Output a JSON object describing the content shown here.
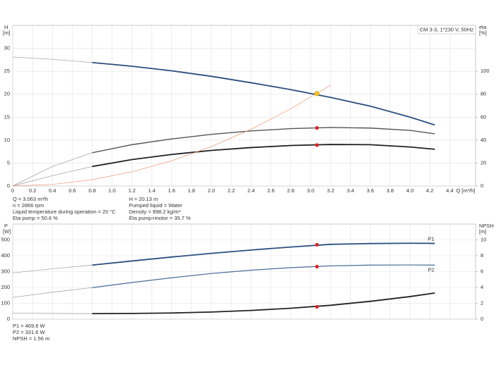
{
  "chart_data": [
    {
      "type": "line",
      "caption": "CM 3-3, 1*230 V, 50Hz",
      "ylabel": "H",
      "yunit": "[m]",
      "y2label": "eta",
      "y2unit": "[%]",
      "xlabel": "Q [m³/h]",
      "xlim": [
        0,
        4.66
      ],
      "ylim": [
        0,
        35
      ],
      "y2lim": [
        0,
        140
      ],
      "grid": true,
      "xticks": [
        0,
        0.2,
        0.4,
        0.6,
        0.8,
        {
          "value": 1,
          "label": "1.0"
        },
        1.2,
        1.4,
        1.6,
        1.8,
        {
          "value": 2,
          "label": "2.0"
        },
        2.2,
        2.4,
        2.6,
        2.8,
        {
          "value": 3,
          "label": "3.0"
        },
        3.2,
        3.4,
        3.6,
        3.8,
        {
          "value": 4,
          "label": "4.0"
        },
        4.2,
        4.4
      ],
      "yticks": [
        0,
        5,
        10,
        15,
        20,
        25,
        30
      ],
      "y2ticks": [
        0,
        20,
        40,
        60,
        80,
        100
      ],
      "series": [
        {
          "color": "#999999",
          "width": 0.7,
          "axis": "y",
          "x": [
            0,
            0.4,
            0.8
          ],
          "values": [
            28.1,
            27.6,
            26.9
          ]
        },
        {
          "color": "#2b4f7e",
          "width": 1.8,
          "axis": "y",
          "x": [
            0.8,
            1.2,
            1.6,
            2.0,
            2.4,
            2.8,
            3.2,
            3.6,
            4.0,
            4.25
          ],
          "values": [
            26.9,
            26.1,
            25.1,
            23.9,
            22.5,
            21.0,
            19.3,
            17.4,
            15.0,
            13.3
          ]
        },
        {
          "color": "#999999",
          "width": 0.7,
          "axis": "y2",
          "x": [
            0,
            0.4,
            0.8
          ],
          "values": [
            0,
            17,
            29
          ]
        },
        {
          "color": "#555555",
          "width": 1.4,
          "axis": "y2",
          "x": [
            0.8,
            1.2,
            1.6,
            2.0,
            2.4,
            2.8,
            3.2,
            3.6,
            4.0,
            4.25
          ],
          "values": [
            29,
            36,
            41,
            45,
            48,
            50,
            51,
            50.5,
            48.5,
            45.5
          ]
        },
        {
          "color": "#999999",
          "width": 0.7,
          "axis": "y2",
          "x": [
            0,
            0.4,
            0.8
          ],
          "values": [
            0,
            9,
            17
          ]
        },
        {
          "color": "#222222",
          "width": 1.8,
          "axis": "y2",
          "x": [
            0.8,
            1.2,
            1.6,
            2.0,
            2.4,
            2.8,
            3.2,
            3.6,
            4.0,
            4.25
          ],
          "values": [
            17,
            23,
            27.5,
            31,
            33.5,
            35.3,
            36.2,
            36,
            34,
            32
          ]
        },
        {
          "color": "#f0a080",
          "width": 0.8,
          "axis": "y",
          "x": [
            0,
            0.4,
            0.8,
            1.2,
            1.6,
            2.0,
            2.4,
            2.8,
            3.2
          ],
          "values": [
            0,
            0.34,
            1.37,
            3.09,
            5.49,
            8.58,
            12.36,
            16.82,
            21.97
          ]
        }
      ],
      "points": [
        {
          "x": 3.063,
          "y": 20.13,
          "axis": "y",
          "color": "#f5c518"
        },
        {
          "x": 3.063,
          "y": 50.6,
          "axis": "y2",
          "color": "#e02020"
        },
        {
          "x": 3.063,
          "y": 35.7,
          "axis": "y2",
          "color": "#e02020"
        }
      ],
      "notes": [
        [
          "Q = 3.063 m³/h",
          "n = 2866 rpm",
          "Liquid temperature during operation = 20 °C",
          "Eta pump = 50.6 %"
        ],
        [
          "H = 20.13 m",
          "Pumped liquid = Water",
          "Density = 998.2 kg/m³",
          "Eta pump+motor = 35.7 %"
        ]
      ]
    },
    {
      "type": "line",
      "ylabel": "P",
      "yunit": "[W]",
      "y2label": "NPSH",
      "y2unit": "[m]",
      "xlim": [
        0,
        4.66
      ],
      "ylim": [
        0,
        600
      ],
      "y2lim": [
        0,
        12
      ],
      "grid": true,
      "yticks": [
        0,
        100,
        200,
        300,
        400,
        500
      ],
      "y2ticks": [
        0,
        2,
        4,
        6,
        8,
        10
      ],
      "series": [
        {
          "color": "#999999",
          "width": 0.7,
          "axis": "y",
          "x": [
            0,
            0.4,
            0.8
          ],
          "values": [
            292,
            318,
            341
          ]
        },
        {
          "name": "P1",
          "color": "#2b4f7e",
          "width": 1.8,
          "axis": "y",
          "x": [
            0.8,
            1.2,
            1.6,
            2.0,
            2.4,
            2.8,
            3.2,
            3.6,
            4.0,
            4.25
          ],
          "values": [
            341,
            367,
            392,
            415,
            436,
            455,
            472,
            477,
            479,
            478
          ]
        },
        {
          "color": "#999999",
          "width": 0.7,
          "axis": "y",
          "x": [
            0,
            0.4,
            0.8
          ],
          "values": [
            137,
            170,
            199
          ]
        },
        {
          "name": "P2",
          "color": "#4a6b98",
          "width": 1.2,
          "axis": "y",
          "x": [
            0.8,
            1.2,
            1.6,
            2.0,
            2.4,
            2.8,
            3.2,
            3.6,
            4.0,
            4.25
          ],
          "values": [
            199,
            231,
            261,
            288,
            309,
            325,
            336,
            341,
            342,
            341
          ]
        },
        {
          "color": "#999999",
          "width": 0.7,
          "axis": "y2",
          "x": [
            0,
            0.4,
            0.8
          ],
          "values": [
            0.75,
            0.72,
            0.7
          ]
        },
        {
          "color": "#222222",
          "width": 1.8,
          "axis": "y2",
          "x": [
            0.8,
            1.2,
            1.6,
            2.0,
            2.4,
            2.8,
            3.2,
            3.6,
            4.0,
            4.25
          ],
          "values": [
            0.7,
            0.72,
            0.78,
            0.9,
            1.1,
            1.38,
            1.75,
            2.25,
            2.85,
            3.3
          ]
        }
      ],
      "points": [
        {
          "x": 3.063,
          "y": 469.6,
          "axis": "y",
          "color": "#e02020"
        },
        {
          "x": 3.063,
          "y": 331.6,
          "axis": "y",
          "color": "#e02020"
        },
        {
          "x": 3.063,
          "y": 1.56,
          "axis": "y2",
          "color": "#e02020"
        }
      ],
      "notes": [
        [
          "P1 = 469.6 W",
          "P2 = 331.6 W",
          "NPSH = 1.56 m"
        ]
      ]
    }
  ]
}
